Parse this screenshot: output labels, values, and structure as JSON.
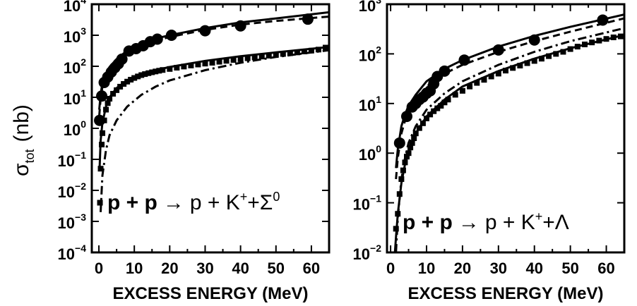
{
  "figure": {
    "ylabel_main": "σ",
    "ylabel_sub": "tot",
    "ylabel_unit": "(nb)"
  },
  "chart_data": [
    {
      "type": "line",
      "xlabel": "EXCESS ENERGY (MeV)",
      "ylabel": "σtot (nb)",
      "reaction": {
        "beam": "p + p",
        "arrow": "→",
        "products": "p + K",
        "charge": "+",
        "last": "+Σ",
        "last_sup": "0"
      },
      "xlim": [
        -2,
        65
      ],
      "ylim": [
        0.0001,
        10000
      ],
      "y_scale": "log",
      "x_ticks": [
        "0",
        "10",
        "20",
        "30",
        "40",
        "50",
        "60"
      ],
      "y_ticks": [
        {
          "base": "10",
          "exp": "4"
        },
        {
          "base": "10",
          "exp": "3"
        },
        {
          "base": "10",
          "exp": "2"
        },
        {
          "base": "10",
          "exp": "1"
        },
        {
          "base": "10",
          "exp": "0"
        },
        {
          "base": "10",
          "exp": "-1"
        },
        {
          "base": "10",
          "exp": "-2"
        },
        {
          "base": "10",
          "exp": "-3"
        },
        {
          "base": "10",
          "exp": "-4"
        }
      ],
      "series": [
        {
          "style": "solid",
          "x": [
            0.1,
            0.5,
            1,
            2,
            3,
            5,
            8,
            12,
            16,
            20,
            30,
            40,
            50,
            65
          ],
          "y": [
            4,
            12,
            30,
            60,
            95,
            170,
            320,
            540,
            780,
            1000,
            1700,
            2600,
            3500,
            5500
          ]
        },
        {
          "style": "dashed",
          "x": [
            0.1,
            0.5,
            1,
            2,
            3,
            5,
            8,
            12,
            16,
            20,
            30,
            40,
            50,
            65
          ],
          "y": [
            2.5,
            9,
            22,
            45,
            75,
            140,
            270,
            460,
            660,
            880,
            1500,
            2200,
            2900,
            4000
          ]
        },
        {
          "style": "solid",
          "x": [
            0.2,
            0.5,
            1,
            2,
            3,
            5,
            8,
            12,
            16,
            20,
            30,
            40,
            50,
            65
          ],
          "y": [
            0.05,
            0.4,
            1.5,
            5,
            10,
            20,
            35,
            55,
            75,
            95,
            150,
            210,
            280,
            420
          ]
        },
        {
          "style": "dashdot",
          "x": [
            0.5,
            1,
            2,
            3,
            5,
            8,
            12,
            16,
            20,
            30,
            40,
            50,
            65
          ],
          "y": [
            0.002,
            0.03,
            0.2,
            0.6,
            1.8,
            5,
            12,
            22,
            35,
            75,
            130,
            200,
            330
          ]
        },
        {
          "style": "circle-markers",
          "x": [
            0.2,
            0.8,
            1.5,
            2.5,
            3.5,
            4.5,
            5.5,
            6.5,
            8.5,
            10.5,
            12.5,
            14.5,
            16.5,
            20.5,
            30,
            40,
            59
          ],
          "y": [
            1.8,
            11,
            30,
            45,
            65,
            90,
            120,
            170,
            310,
            370,
            460,
            620,
            750,
            1000,
            1400,
            2000,
            3300
          ]
        },
        {
          "style": "square-markers",
          "x": [
            0.3,
            0.5,
            0.8,
            1,
            1.5,
            2,
            2.5,
            3,
            4,
            5,
            6,
            7,
            8,
            9,
            10,
            11,
            12,
            13,
            14,
            15,
            16,
            17,
            18,
            20,
            22,
            24,
            26,
            28,
            30,
            32,
            34,
            36,
            38,
            40,
            42,
            44,
            46,
            48,
            50,
            52,
            54,
            56,
            58,
            60,
            62,
            64
          ],
          "y": [
            0.004,
            0.05,
            0.3,
            0.7,
            1.8,
            4,
            6.5,
            9,
            13,
            17,
            22,
            27,
            32,
            37,
            42,
            47,
            52,
            56,
            60,
            64,
            68,
            72,
            76,
            82,
            90,
            98,
            106,
            114,
            122,
            130,
            140,
            150,
            160,
            170,
            182,
            194,
            206,
            220,
            235,
            250,
            265,
            280,
            300,
            320,
            345,
            400
          ]
        }
      ]
    },
    {
      "type": "line",
      "xlabel": "EXCESS ENERGY (MeV)",
      "ylabel": "",
      "reaction": {
        "beam": "p + p",
        "arrow": "→",
        "products": "p + K",
        "charge": "+",
        "last": "+Λ",
        "last_sup": ""
      },
      "xlim": [
        -1,
        65
      ],
      "ylim": [
        0.01,
        1000
      ],
      "y_scale": "log",
      "x_ticks": [
        "0",
        "10",
        "20",
        "30",
        "40",
        "50",
        "60"
      ],
      "y_ticks": [
        {
          "base": "10",
          "exp": "3"
        },
        {
          "base": "10",
          "exp": "2"
        },
        {
          "base": "10",
          "exp": "1"
        },
        {
          "base": "10",
          "exp": "0"
        },
        {
          "base": "10",
          "exp": "-1"
        },
        {
          "base": "10",
          "exp": "-2"
        }
      ],
      "series": [
        {
          "style": "solid",
          "x": [
            1.5,
            2,
            3,
            4,
            5,
            7,
            10,
            15,
            20,
            30,
            40,
            50,
            65
          ],
          "y": [
            0.5,
            1.2,
            3.5,
            6,
            9,
            15,
            28,
            50,
            75,
            140,
            230,
            350,
            620
          ]
        },
        {
          "style": "dashed",
          "x": [
            1.5,
            2,
            3,
            4,
            5,
            7,
            10,
            15,
            20,
            30,
            40,
            50,
            65
          ],
          "y": [
            0.3,
            0.8,
            2.5,
            4.5,
            7,
            12,
            22,
            40,
            60,
            110,
            180,
            280,
            520
          ]
        },
        {
          "style": "dashdot",
          "x": [
            1.5,
            2,
            3,
            4,
            5,
            7,
            10,
            15,
            20,
            30,
            40,
            50,
            65
          ],
          "y": [
            0.01,
            0.05,
            0.3,
            0.8,
            1.6,
            3.5,
            7.5,
            16,
            28,
            60,
            110,
            180,
            330
          ]
        },
        {
          "style": "solid",
          "x": [
            1.2,
            1.5,
            2,
            3,
            4,
            5,
            7,
            10,
            15,
            20,
            30,
            40,
            50,
            65
          ],
          "y": [
            0.01,
            0.02,
            0.06,
            0.25,
            0.6,
            1.1,
            2.5,
            5.5,
            12,
            22,
            45,
            80,
            130,
            240
          ]
        },
        {
          "style": "circle-markers",
          "x": [
            2.5,
            4.5,
            6,
            7,
            8,
            9,
            10,
            11,
            12,
            13,
            15,
            20.5,
            30,
            40,
            59
          ],
          "y": [
            1.6,
            5.5,
            8.5,
            10,
            12,
            13.5,
            16,
            18,
            25,
            35,
            45,
            75,
            120,
            190,
            480
          ]
        },
        {
          "style": "square-markers",
          "x": [
            1.5,
            2,
            2.5,
            3,
            3.5,
            4,
            4.5,
            5,
            5.5,
            6,
            6.5,
            7,
            8,
            9,
            10,
            11,
            12,
            13,
            14,
            15,
            16,
            18,
            20,
            22,
            24,
            26,
            28,
            30,
            32,
            34,
            36,
            38,
            40,
            42,
            44,
            46,
            48,
            50,
            52,
            54,
            56,
            58,
            60,
            62,
            64
          ],
          "y": [
            0.03,
            0.06,
            0.15,
            0.3,
            0.45,
            0.65,
            0.85,
            1.0,
            1.3,
            1.6,
            2.0,
            2.5,
            3.2,
            4.0,
            5.0,
            6.0,
            7.0,
            8.0,
            9.0,
            10.5,
            12,
            15,
            18,
            22,
            26,
            30,
            35,
            40,
            46,
            52,
            58,
            65,
            72,
            80,
            90,
            100,
            110,
            125,
            140,
            155,
            170,
            185,
            200,
            215,
            225
          ]
        }
      ]
    }
  ]
}
